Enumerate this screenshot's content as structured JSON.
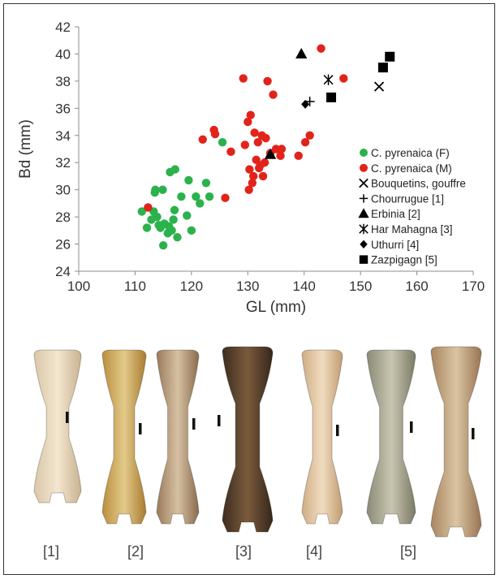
{
  "chart_data": {
    "type": "scatter",
    "xlabel": "GL (mm)",
    "ylabel": "Bd (mm)",
    "xlim": [
      100,
      170
    ],
    "ylim": [
      24,
      42
    ],
    "xticks": [
      100,
      110,
      120,
      130,
      140,
      150,
      160,
      170
    ],
    "yticks": [
      24,
      26,
      28,
      30,
      32,
      34,
      36,
      38,
      40,
      42
    ],
    "grid": false,
    "legend_position": "right",
    "series": [
      {
        "name": "C. pyrenaica (F)",
        "marker": "circle",
        "color": "#2bb24c",
        "x": [
          111.2,
          112.1,
          112.9,
          113.5,
          113.9,
          114.5,
          114.9,
          115.0,
          115.2,
          115.8,
          116.2,
          116.5,
          116.8,
          117.1,
          117.5,
          118.2,
          119.5,
          120.0,
          120.8,
          121.5,
          122.6,
          123.2,
          113.6,
          116.0,
          117.0,
          119.2,
          113.3,
          114.2,
          125.5
        ],
        "y": [
          28.4,
          27.2,
          27.8,
          29.8,
          28.0,
          27.2,
          30.0,
          25.9,
          27.5,
          26.8,
          31.3,
          27.0,
          27.8,
          31.5,
          26.5,
          29.5,
          30.7,
          27.0,
          29.5,
          29.0,
          30.5,
          29.5,
          30.0,
          27.3,
          28.5,
          28.1,
          28.4,
          27.4,
          33.5
        ]
      },
      {
        "name": "C. pyrenaica (M)",
        "marker": "circle",
        "color": "#e2231a",
        "x": [
          112.3,
          122.0,
          124.0,
          124.2,
          126.0,
          127.0,
          129.2,
          129.5,
          130.0,
          130.2,
          130.5,
          130.8,
          131.0,
          131.2,
          131.5,
          132.0,
          132.2,
          132.5,
          133.0,
          133.2,
          133.5,
          134.0,
          134.5,
          135.0,
          135.8,
          136.0,
          139.0,
          140.2,
          141.0,
          143.0,
          147.0,
          130.3,
          132.7,
          131.8
        ],
        "y": [
          28.7,
          33.7,
          34.4,
          34.1,
          29.4,
          32.8,
          38.2,
          33.3,
          35.0,
          30.0,
          35.5,
          30.5,
          31.0,
          34.2,
          32.2,
          31.6,
          31.8,
          34.0,
          32.0,
          33.8,
          38.0,
          32.7,
          37.0,
          33.0,
          32.5,
          33.0,
          32.5,
          33.5,
          34.0,
          40.4,
          38.2,
          31.5,
          31.0,
          33.5
        ]
      },
      {
        "name": "Bouquetins, gouffre",
        "marker": "x",
        "color": "#000000",
        "x": [
          153.3
        ],
        "y": [
          37.6
        ]
      },
      {
        "name": "Chourrugue [1]",
        "marker": "plus",
        "color": "#000000",
        "x": [
          141.0
        ],
        "y": [
          36.5
        ]
      },
      {
        "name": "Erbinia [2]",
        "marker": "triangle",
        "color": "#000000",
        "x": [
          139.5,
          134.0
        ],
        "y": [
          40.0,
          32.6
        ]
      },
      {
        "name": "Har Mahagna [3]",
        "marker": "asterisk",
        "color": "#000000",
        "x": [
          144.3
        ],
        "y": [
          38.1
        ]
      },
      {
        "name": "Uthurri [4]",
        "marker": "diamond",
        "color": "#000000",
        "x": [
          140.2
        ],
        "y": [
          36.3
        ]
      },
      {
        "name": "Zazpigagn [5]",
        "marker": "square",
        "color": "#000000",
        "x": [
          144.8,
          154.0,
          155.2
        ],
        "y": [
          36.8,
          39.0,
          39.8
        ]
      }
    ]
  },
  "specimens": {
    "labels": [
      "[1]",
      "[2]",
      "[3]",
      "[4]",
      "[5]"
    ]
  }
}
